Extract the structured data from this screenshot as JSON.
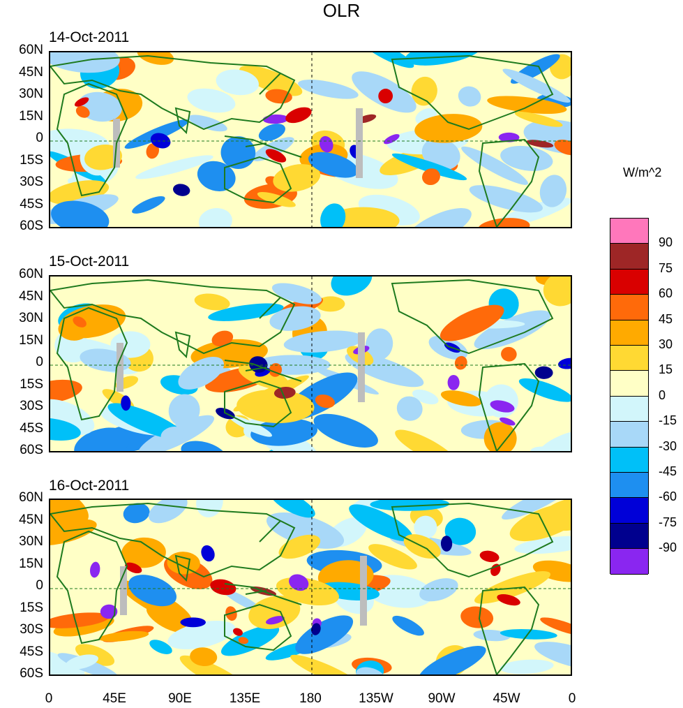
{
  "title": "OLR",
  "units": "W/m^2",
  "panels": [
    {
      "date": "14-Oct-2011"
    },
    {
      "date": "15-Oct-2011"
    },
    {
      "date": "16-Oct-2011"
    }
  ],
  "lat_labels": [
    "60N",
    "45N",
    "30N",
    "15N",
    "0",
    "15S",
    "30S",
    "45S",
    "60S"
  ],
  "lon_labels": [
    "0",
    "45E",
    "90E",
    "135E",
    "180",
    "135W",
    "90W",
    "45W",
    "0"
  ],
  "colorbar": {
    "colors": [
      "#ff77bb",
      "#9e2626",
      "#d90000",
      "#ff6a0a",
      "#ffaa00",
      "#ffd933",
      "#ffffc6",
      "#d2f6fb",
      "#a8d8f8",
      "#00c0f8",
      "#1e8ff0",
      "#0000d8",
      "#00008e",
      "#8a26f0"
    ],
    "ticks": [
      "90",
      "75",
      "60",
      "45",
      "30",
      "15",
      "0",
      "-15",
      "-30",
      "-45",
      "-60",
      "-75",
      "-90"
    ]
  },
  "colors": {
    "coast": "#1e7a1e",
    "missing": "#bdbdbd"
  }
}
